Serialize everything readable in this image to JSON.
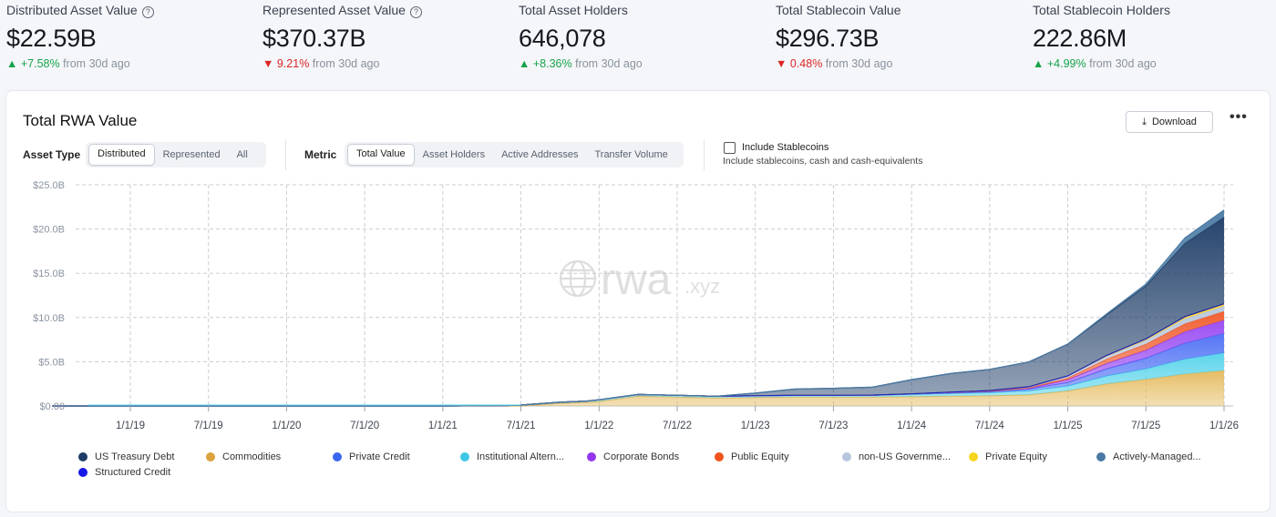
{
  "stats": [
    {
      "label": "Distributed Asset Value",
      "info": true,
      "value": "$22.59B",
      "dir": "up",
      "arrow": "▲",
      "change": "+7.58%",
      "suffix": "from 30d ago"
    },
    {
      "label": "Represented Asset Value",
      "info": true,
      "value": "$370.37B",
      "dir": "down",
      "arrow": "▼",
      "change": "9.21%",
      "suffix": "from 30d ago"
    },
    {
      "label": "Total Asset Holders",
      "info": false,
      "value": "646,078",
      "dir": "up",
      "arrow": "▲",
      "change": "+8.36%",
      "suffix": "from 30d ago"
    },
    {
      "label": "Total Stablecoin Value",
      "info": false,
      "value": "$296.73B",
      "dir": "down",
      "arrow": "▼",
      "change": "0.48%",
      "suffix": "from 30d ago"
    },
    {
      "label": "Total Stablecoin Holders",
      "info": false,
      "value": "222.86M",
      "dir": "up",
      "arrow": "▲",
      "change": "+4.99%",
      "suffix": "from 30d ago"
    }
  ],
  "card": {
    "title": "Total RWA Value",
    "download_label": "Download",
    "more_label": "•••",
    "asset_type_label": "Asset Type",
    "asset_type_options": [
      "Distributed",
      "Represented",
      "All"
    ],
    "asset_type_selected": "Distributed",
    "metric_label": "Metric",
    "metric_options": [
      "Total Value",
      "Asset Holders",
      "Active Addresses",
      "Transfer Volume"
    ],
    "metric_selected": "Total Value",
    "include_stablecoins_label": "Include Stablecoins",
    "include_stablecoins_checked": false,
    "include_stablecoins_sub": "Include stablecoins, cash and cash-equivalents"
  },
  "watermark": {
    "main": "rwa",
    "suffix": ".xyz"
  },
  "chart_data": {
    "type": "area",
    "stacked": true,
    "y_unit": "USD billions",
    "ylim": [
      0,
      25
    ],
    "yticks": [
      0,
      5,
      10,
      15,
      20,
      25
    ],
    "ytick_labels": [
      "$0.00",
      "$5.0B",
      "$10.0B",
      "$15.0B",
      "$20.0B",
      "$25.0B"
    ],
    "xtick_labels": [
      "1/1/19",
      "7/1/19",
      "1/1/20",
      "7/1/20",
      "1/1/21",
      "7/1/21",
      "1/1/22",
      "7/1/22",
      "1/1/23",
      "7/1/23",
      "1/1/24",
      "7/1/24",
      "1/1/25",
      "7/1/25",
      "1/1/26"
    ],
    "x_dates": [
      "2018-07",
      "2018-10",
      "2019-01",
      "2019-07",
      "2020-01",
      "2020-07",
      "2021-01",
      "2021-06",
      "2021-07",
      "2021-10",
      "2021-12",
      "2022-01",
      "2022-04",
      "2022-07",
      "2022-10",
      "2023-01",
      "2023-04",
      "2023-07",
      "2023-10",
      "2024-01",
      "2024-04",
      "2024-07",
      "2024-10",
      "2025-01",
      "2025-04",
      "2025-07",
      "2025-10",
      "2026-01"
    ],
    "grid": true,
    "legend_position": "bottom",
    "series": [
      {
        "name": "Commodities",
        "color": "#e4b95b",
        "values": [
          0,
          0,
          0,
          0,
          0,
          0,
          0,
          0,
          0,
          0.3,
          0.4,
          0.5,
          1.1,
          1.0,
          0.9,
          0.95,
          1.0,
          1.0,
          1.0,
          1.05,
          1.1,
          1.15,
          1.25,
          1.7,
          2.5,
          3.0,
          3.6,
          4.0
        ]
      },
      {
        "name": "Institutional Alternative Funds",
        "color": "#55d3ea",
        "values": [
          0,
          0,
          0,
          0,
          0,
          0,
          0,
          0.05,
          0.1,
          0.12,
          0.15,
          0.2,
          0.2,
          0.2,
          0.2,
          0.2,
          0.2,
          0.2,
          0.2,
          0.25,
          0.3,
          0.35,
          0.45,
          0.55,
          0.9,
          1.2,
          1.7,
          2.0
        ]
      },
      {
        "name": "Private Credit",
        "color": "#4d6ff5",
        "values": [
          0,
          0,
          0,
          0,
          0,
          0,
          0,
          0,
          0,
          0,
          0,
          0,
          0,
          0,
          0,
          0,
          0,
          0,
          0.02,
          0.05,
          0.08,
          0.1,
          0.2,
          0.4,
          0.8,
          1.2,
          1.8,
          2.2
        ]
      },
      {
        "name": "Corporate Bonds",
        "color": "#9747f2",
        "values": [
          0,
          0,
          0,
          0,
          0,
          0,
          0,
          0,
          0,
          0,
          0,
          0,
          0,
          0,
          0,
          0,
          0,
          0,
          0,
          0.02,
          0.04,
          0.06,
          0.1,
          0.3,
          0.6,
          0.9,
          1.3,
          1.5
        ]
      },
      {
        "name": "Public Equity",
        "color": "#f05a2a",
        "values": [
          0,
          0,
          0,
          0,
          0,
          0,
          0,
          0,
          0,
          0,
          0,
          0,
          0,
          0,
          0,
          0,
          0,
          0,
          0,
          0,
          0.02,
          0.03,
          0.05,
          0.2,
          0.5,
          0.7,
          0.9,
          1.0
        ]
      },
      {
        "name": "non-US Government Debt",
        "color": "#b7c6dc",
        "values": [
          0,
          0,
          0,
          0,
          0,
          0,
          0,
          0,
          0,
          0,
          0,
          0,
          0,
          0,
          0,
          0,
          0,
          0,
          0,
          0,
          0.02,
          0.05,
          0.1,
          0.2,
          0.3,
          0.4,
          0.55,
          0.6
        ]
      },
      {
        "name": "Private Equity",
        "color": "#f6d32d",
        "values": [
          0,
          0,
          0,
          0,
          0,
          0,
          0,
          0,
          0,
          0,
          0,
          0,
          0,
          0,
          0,
          0,
          0,
          0,
          0,
          0,
          0,
          0,
          0.02,
          0.05,
          0.1,
          0.15,
          0.2,
          0.2
        ]
      },
      {
        "name": "Structured Credit",
        "color": "#1a1ae0",
        "values": [
          0,
          0,
          0,
          0,
          0,
          0,
          0,
          0,
          0,
          0,
          0,
          0,
          0,
          0,
          0,
          0,
          0,
          0,
          0,
          0,
          0,
          0,
          0,
          0,
          0.02,
          0.03,
          0.05,
          0.05
        ]
      },
      {
        "name": "US Treasury Debt",
        "color": "#1c3b66",
        "values": [
          0,
          0,
          0,
          0,
          0,
          0,
          0,
          0,
          0,
          0,
          0,
          0,
          0,
          0,
          0,
          0.3,
          0.7,
          0.8,
          0.9,
          1.6,
          2.1,
          2.4,
          2.8,
          3.6,
          4.6,
          6.0,
          8.3,
          9.8
        ]
      },
      {
        "name": "Actively-Managed Strategies",
        "color": "#4a7aa3",
        "values": [
          0,
          0,
          0,
          0,
          0,
          0,
          0,
          0,
          0,
          0,
          0,
          0,
          0,
          0,
          0,
          0,
          0,
          0,
          0,
          0,
          0,
          0,
          0,
          0,
          0.1,
          0.2,
          0.6,
          0.8
        ]
      }
    ],
    "legend": [
      {
        "name": "US Treasury Debt",
        "color": "#1c3b66"
      },
      {
        "name": "Commodities",
        "color": "#dca23d"
      },
      {
        "name": "Private Credit",
        "color": "#3b67f0"
      },
      {
        "name": "Institutional Altern...",
        "color": "#3fc6e6"
      },
      {
        "name": "Corporate Bonds",
        "color": "#9435ef"
      },
      {
        "name": "Public Equity",
        "color": "#f2531c"
      },
      {
        "name": "non-US Governme...",
        "color": "#b7c6dc"
      },
      {
        "name": "Private Equity",
        "color": "#f7d51c"
      },
      {
        "name": "Actively-Managed...",
        "color": "#4a7aa3"
      },
      {
        "name": "Structured Credit",
        "color": "#1717e8"
      }
    ]
  }
}
